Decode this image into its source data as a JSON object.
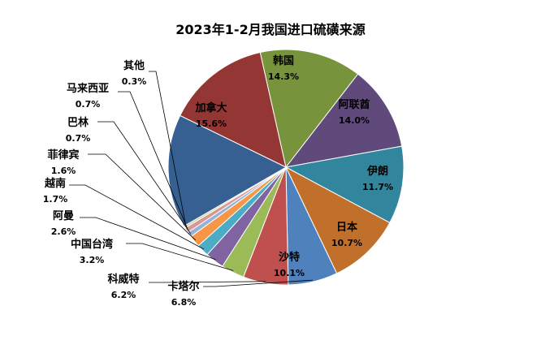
{
  "chart_data": {
    "type": "pie",
    "title": "2023年1-2月我国进口硫磺来源",
    "slices": [
      {
        "name": "韩国",
        "pct_label": "14.3%",
        "value": 14.3,
        "color": "#943634"
      },
      {
        "name": "阿联酋",
        "pct_label": "14.0%",
        "value": 14.0,
        "color": "#77933C"
      },
      {
        "name": "伊朗",
        "pct_label": "11.7%",
        "value": 11.7,
        "color": "#604A7B"
      },
      {
        "name": "日本",
        "pct_label": "10.7%",
        "value": 10.7,
        "color": "#31859C"
      },
      {
        "name": "沙特",
        "pct_label": "10.1%",
        "value": 10.1,
        "color": "#C0702A"
      },
      {
        "name": "卡塔尔",
        "pct_label": "6.8%",
        "value": 6.8,
        "color": "#4F81BD"
      },
      {
        "name": "科威特",
        "pct_label": "6.2%",
        "value": 6.2,
        "color": "#C0504D"
      },
      {
        "name": "中国台湾",
        "pct_label": "3.2%",
        "value": 3.2,
        "color": "#9BBB59"
      },
      {
        "name": "阿曼",
        "pct_label": "2.6%",
        "value": 2.6,
        "color": "#8064A2"
      },
      {
        "name": "越南",
        "pct_label": "1.7%",
        "value": 1.7,
        "color": "#4BACC6"
      },
      {
        "name": "菲律宾",
        "pct_label": "1.6%",
        "value": 1.6,
        "color": "#F79646"
      },
      {
        "name": "巴林",
        "pct_label": "0.7%",
        "value": 0.7,
        "color": "#95B3D7"
      },
      {
        "name": "马来西亚",
        "pct_label": "0.7%",
        "value": 0.7,
        "color": "#D99694"
      },
      {
        "name": "其他",
        "pct_label": "0.3%",
        "value": 0.3,
        "color": "#C3D69B"
      },
      {
        "name": "加拿大",
        "pct_label": "15.6%",
        "value": 15.6,
        "color": "#376092"
      }
    ]
  }
}
